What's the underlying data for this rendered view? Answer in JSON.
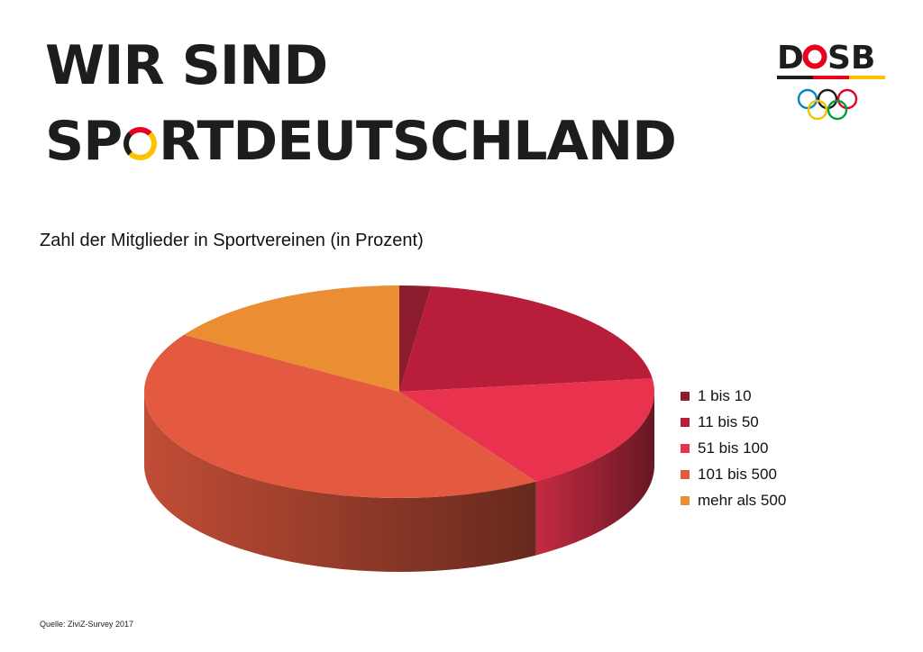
{
  "header": {
    "line1": "WIR SIND",
    "line2_pre": "SP",
    "line2_post": "RTDEUTSCHLAND"
  },
  "logo": {
    "text_pre": "D",
    "text_post": "SB",
    "stripe_colors": [
      "#1d1d1b",
      "#e8001c",
      "#ffc200"
    ],
    "ring_colors": [
      "#0085c7",
      "#1d1d1b",
      "#e8001c",
      "#f4c300",
      "#009f3d"
    ]
  },
  "chart_data": {
    "type": "pie",
    "title": "Zahl der Mitglieder in Sportvereinen (in Prozent)",
    "categories": [
      "1 bis 10",
      "11 bis 50",
      "51 bis 100",
      "101 bis 500",
      "mehr als 500"
    ],
    "values": [
      2,
      21,
      18,
      43,
      16
    ],
    "colors": [
      "#8c1c2e",
      "#b81e39",
      "#e8324e",
      "#e35a40",
      "#eb8d33"
    ],
    "legend_position": "right",
    "three_d": true
  },
  "footer": {
    "source": "Quelle: ZiviZ-Survey 2017"
  }
}
